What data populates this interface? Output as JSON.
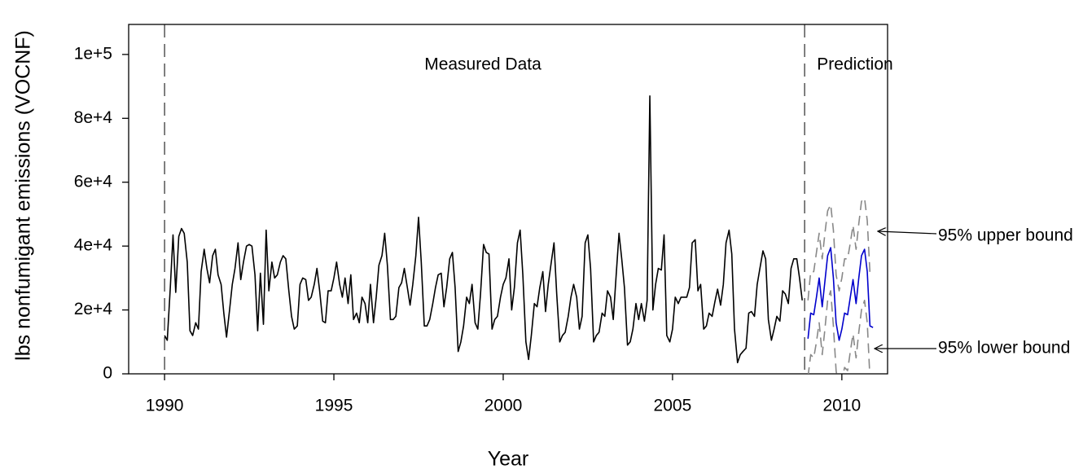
{
  "chart_data": {
    "type": "line",
    "x_label": "Year",
    "y_label": "lbs nonfumigant emissions (VOCNF)",
    "annotations": [
      "Measured Data",
      "Prediction"
    ],
    "xlim": [
      1988.94,
      2011.35
    ],
    "xticks": [
      1990,
      1995,
      2000,
      2005,
      2010
    ],
    "ylim": [
      0,
      109400
    ],
    "yticks": [
      0,
      {
        "value": 20000,
        "label": "2e+4"
      },
      {
        "value": 40000,
        "label": "4e+4"
      },
      {
        "value": 60000,
        "label": "6e+4"
      },
      {
        "value": 80000,
        "label": "8e+4"
      },
      {
        "value": 100000,
        "label": "1e+5"
      }
    ],
    "reference_lines": [
      1990,
      2008.9
    ],
    "series": [
      {
        "color": "#000000",
        "x": [
          1990,
          1990.08,
          1990.17,
          1990.25,
          1990.33,
          1990.42,
          1990.5,
          1990.58,
          1990.67,
          1990.75,
          1990.83,
          1990.92,
          1991,
          1991.08,
          1991.17,
          1991.25,
          1991.33,
          1991.42,
          1991.5,
          1991.58,
          1991.67,
          1991.75,
          1991.83,
          1991.92,
          1992,
          1992.08,
          1992.17,
          1992.25,
          1992.33,
          1992.42,
          1992.5,
          1992.58,
          1992.67,
          1992.75,
          1992.83,
          1992.92,
          1993,
          1993.08,
          1993.17,
          1993.25,
          1993.33,
          1993.42,
          1993.5,
          1993.58,
          1993.67,
          1993.75,
          1993.83,
          1993.92,
          1994,
          1994.08,
          1994.17,
          1994.25,
          1994.33,
          1994.42,
          1994.5,
          1994.58,
          1994.67,
          1994.75,
          1994.83,
          1994.92,
          1995,
          1995.08,
          1995.17,
          1995.25,
          1995.33,
          1995.42,
          1995.5,
          1995.58,
          1995.67,
          1995.75,
          1995.83,
          1995.92,
          1996,
          1996.08,
          1996.17,
          1996.25,
          1996.33,
          1996.42,
          1996.5,
          1996.58,
          1996.67,
          1996.75,
          1996.83,
          1996.92,
          1997,
          1997.08,
          1997.17,
          1997.25,
          1997.33,
          1997.42,
          1997.5,
          1997.58,
          1997.67,
          1997.75,
          1997.83,
          1997.92,
          1998,
          1998.08,
          1998.17,
          1998.25,
          1998.33,
          1998.42,
          1998.5,
          1998.58,
          1998.67,
          1998.75,
          1998.83,
          1998.92,
          1999,
          1999.08,
          1999.17,
          1999.25,
          1999.33,
          1999.42,
          1999.5,
          1999.58,
          1999.67,
          1999.75,
          1999.83,
          1999.92,
          2000,
          2000.08,
          2000.17,
          2000.25,
          2000.33,
          2000.42,
          2000.5,
          2000.58,
          2000.67,
          2000.75,
          2000.83,
          2000.92,
          2001,
          2001.08,
          2001.17,
          2001.25,
          2001.33,
          2001.42,
          2001.5,
          2001.58,
          2001.67,
          2001.75,
          2001.83,
          2001.92,
          2002,
          2002.08,
          2002.17,
          2002.25,
          2002.33,
          2002.42,
          2002.5,
          2002.58,
          2002.67,
          2002.75,
          2002.83,
          2002.92,
          2003,
          2003.08,
          2003.17,
          2003.25,
          2003.33,
          2003.42,
          2003.5,
          2003.58,
          2003.67,
          2003.75,
          2003.83,
          2003.92,
          2004,
          2004.08,
          2004.17,
          2004.25,
          2004.33,
          2004.42,
          2004.5,
          2004.58,
          2004.67,
          2004.75,
          2004.83,
          2004.92,
          2005,
          2005.08,
          2005.17,
          2005.25,
          2005.33,
          2005.42,
          2005.5,
          2005.58,
          2005.67,
          2005.75,
          2005.83,
          2005.92,
          2006,
          2006.08,
          2006.17,
          2006.25,
          2006.33,
          2006.42,
          2006.5,
          2006.58,
          2006.67,
          2006.75,
          2006.83,
          2006.92,
          2007,
          2007.08,
          2007.17,
          2007.25,
          2007.33,
          2007.42,
          2007.5,
          2007.58,
          2007.67,
          2007.75,
          2007.83,
          2007.92,
          2008,
          2008.08,
          2008.17,
          2008.25,
          2008.33,
          2008.42,
          2008.5,
          2008.58,
          2008.67,
          2008.75,
          2008.83
        ],
        "values": [
          12000,
          10500,
          27000,
          43500,
          25500,
          43000,
          45500,
          44000,
          35000,
          13500,
          12000,
          16000,
          14000,
          32000,
          39000,
          33000,
          28500,
          37000,
          39000,
          31000,
          28000,
          19000,
          11500,
          20000,
          28000,
          33000,
          41000,
          29500,
          35000,
          40000,
          40500,
          40000,
          31000,
          13500,
          31500,
          15500,
          45000,
          26000,
          35000,
          30000,
          31000,
          35000,
          37000,
          36000,
          26000,
          18000,
          14000,
          15000,
          28000,
          30000,
          29500,
          23000,
          24000,
          28000,
          33000,
          26000,
          16500,
          16000,
          26000,
          26000,
          30000,
          35000,
          28000,
          24000,
          30000,
          22000,
          31000,
          17000,
          19000,
          16000,
          24000,
          22000,
          16000,
          28000,
          16000,
          24000,
          34000,
          37000,
          44000,
          34000,
          17000,
          17000,
          18000,
          27000,
          28500,
          33000,
          27000,
          21500,
          28000,
          37000,
          49000,
          35000,
          15000,
          15000,
          17000,
          22000,
          27000,
          31000,
          31500,
          21000,
          27000,
          36000,
          38000,
          27000,
          7000,
          10000,
          15000,
          24000,
          22000,
          28000,
          16000,
          14000,
          25000,
          40500,
          38000,
          37500,
          14000,
          17000,
          18000,
          24000,
          28000,
          30000,
          36000,
          20000,
          27000,
          41000,
          45000,
          31000,
          10000,
          4500,
          12000,
          22000,
          21000,
          27000,
          32000,
          19500,
          28000,
          35000,
          41000,
          25000,
          10000,
          12000,
          13000,
          18000,
          24000,
          28000,
          24000,
          14000,
          18000,
          41000,
          43500,
          33000,
          10000,
          12000,
          13000,
          19000,
          18000,
          26000,
          24000,
          17000,
          30000,
          44000,
          36000,
          27000,
          9000,
          10000,
          14000,
          22000,
          17000,
          22000,
          16500,
          23000,
          87000,
          20000,
          28000,
          33000,
          32500,
          43500,
          12000,
          10000,
          14000,
          24000,
          22000,
          24000,
          24000,
          24000,
          27000,
          41000,
          42000,
          26000,
          28000,
          14000,
          15000,
          19000,
          18000,
          22500,
          26500,
          21500,
          28000,
          41000,
          45000,
          37500,
          14000,
          3500,
          6000,
          7000,
          8000,
          19000,
          19500,
          18000,
          28000,
          33000,
          38500,
          36000,
          17000,
          10500,
          14000,
          18000,
          16500,
          26000,
          25000,
          22000,
          33000,
          36000,
          36000,
          30000,
          23000
        ]
      },
      {
        "color": "#0000cc",
        "x": [
          2009,
          2009.08,
          2009.17,
          2009.25,
          2009.33,
          2009.42,
          2009.5,
          2009.58,
          2009.67,
          2009.75,
          2009.83,
          2009.92,
          2010,
          2010.08,
          2010.17,
          2010.25,
          2010.33,
          2010.42,
          2010.5,
          2010.58,
          2010.67,
          2010.75,
          2010.83,
          2010.92
        ],
        "values": [
          11000,
          19000,
          18500,
          24000,
          30000,
          21000,
          29000,
          37000,
          39500,
          30000,
          16000,
          10500,
          14000,
          19000,
          18500,
          24000,
          29500,
          22000,
          30000,
          37000,
          39000,
          32000,
          15000,
          14500
        ]
      },
      {
        "name": "95% upper bound",
        "color": "#888888",
        "dashed": true,
        "x": [
          2009,
          2009.08,
          2009.17,
          2009.25,
          2009.33,
          2009.42,
          2009.5,
          2009.58,
          2009.67,
          2009.75,
          2009.83,
          2009.92,
          2010,
          2010.08,
          2010.17,
          2010.25,
          2010.33,
          2010.42,
          2010.5,
          2010.58,
          2010.67,
          2010.75,
          2010.83,
          2010.92
        ],
        "values": [
          23000,
          32000,
          32000,
          38000,
          44000,
          36000,
          44000,
          51000,
          53000,
          45000,
          31000,
          26000,
          30000,
          36000,
          36000,
          41000,
          46500,
          39000,
          47000,
          54000,
          55000,
          48000,
          31500,
          31000
        ]
      },
      {
        "name": "95% lower bound",
        "color": "#888888",
        "dashed": true,
        "x": [
          2009,
          2009.08,
          2009.17,
          2009.25,
          2009.33,
          2009.42,
          2009.5,
          2009.58,
          2009.67,
          2009.75,
          2009.83,
          2009.92,
          2010,
          2010.08,
          2010.17,
          2010.25,
          2010.33,
          2010.42,
          2010.5,
          2010.58,
          2010.67,
          2010.75,
          2010.83,
          2010.92
        ],
        "values": [
          -1000,
          6000,
          5000,
          10000,
          16000,
          6000,
          14000,
          23000,
          26000,
          15000,
          1000,
          -5000,
          -2000,
          2000,
          1000,
          7000,
          12500,
          5000,
          13000,
          20000,
          23000,
          16000,
          -1500,
          -2000
        ]
      }
    ]
  }
}
